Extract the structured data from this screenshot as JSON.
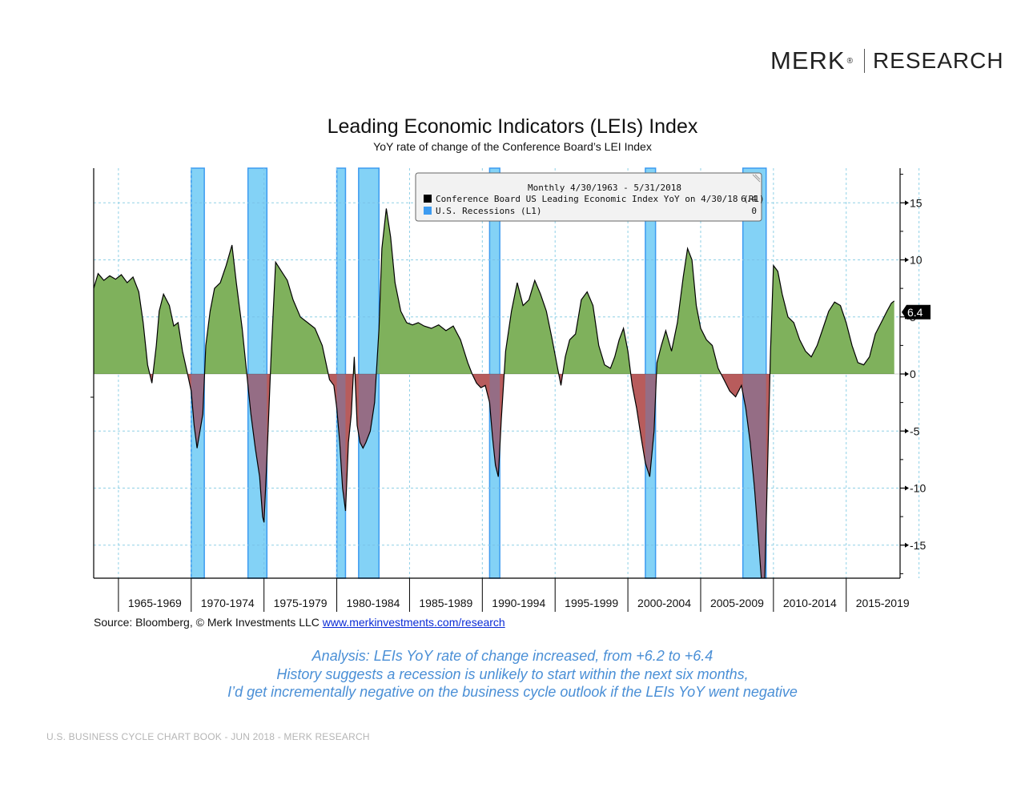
{
  "logo": {
    "brand": "MERK",
    "reg": "®",
    "sub": "RESEARCH"
  },
  "title": "Leading Economic Indicators (LEIs) Index",
  "subtitle": "YoY rate of change of the Conference Board’s LEI Index",
  "legend": {
    "header": "Monthly 4/30/1963 - 5/31/2018",
    "items": [
      {
        "label": "Conference Board US Leading Economic Index YoY on 4/30/18 (R1)",
        "value": "6.4",
        "color": "#000000"
      },
      {
        "label": "U.S. Recessions (L1)",
        "value": "0",
        "color": "#3d9bf0"
      }
    ]
  },
  "last_value_label": "6.4",
  "source": {
    "prefix": "Source: Bloomberg, © Merk Investments LLC ",
    "link": "www.merkinvestments.com/research"
  },
  "analysis": [
    "Analysis: LEIs YoY rate of change increased, from +6.2 to +6.4",
    "History suggests a recession is unlikely to start within the next six months,",
    "I’d get incrementally negative on the business cycle outlook if the LEIs YoY went negative"
  ],
  "footer": "U.S. BUSINESS CYCLE CHART BOOK - JUN 2018 - MERK RESEARCH",
  "colors": {
    "positive_fill": "#7fb15c",
    "negative_fill": "#b85c5c",
    "recession_fill": "#9ee8f8",
    "recession_border": "#3d9bf0",
    "gridline": "#8fd0e6",
    "line": "#000000"
  },
  "chart_data": {
    "type": "area",
    "x_unit": "year",
    "ylim": [
      -18,
      18
    ],
    "xlim": [
      1963.3,
      2018.7
    ],
    "yticks": [
      -15,
      -10,
      -5,
      0,
      5,
      10,
      15
    ],
    "ytick_labels": [
      "-15",
      "-10",
      "-5",
      "0",
      "5",
      "10",
      "15"
    ],
    "xtick_labels": [
      "1965-1969",
      "1970-1974",
      "1975-1979",
      "1980-1984",
      "1985-1989",
      "1990-1994",
      "1995-1999",
      "2000-2004",
      "2005-2009",
      "2010-2014",
      "2015-2019"
    ],
    "axis_side": "right",
    "grid": true,
    "legend_position": "top-center",
    "recessions": [
      [
        1970.0,
        1970.9
      ],
      [
        1973.9,
        1975.2
      ],
      [
        1980.0,
        1980.6
      ],
      [
        1981.5,
        1982.9
      ],
      [
        1990.5,
        1991.2
      ],
      [
        2001.2,
        2001.9
      ],
      [
        2007.9,
        2009.5
      ]
    ],
    "series": [
      {
        "name": "Conference Board US Leading Economic Index YoY",
        "last_value": 6.4,
        "x": [
          1963.3,
          1963.6,
          1964.0,
          1964.4,
          1964.8,
          1965.2,
          1965.6,
          1966.0,
          1966.4,
          1966.7,
          1967.0,
          1967.3,
          1967.6,
          1967.8,
          1968.1,
          1968.5,
          1968.8,
          1969.1,
          1969.4,
          1969.7,
          1970.0,
          1970.2,
          1970.4,
          1970.6,
          1970.8,
          1971.0,
          1971.3,
          1971.6,
          1972.0,
          1972.4,
          1972.8,
          1973.1,
          1973.5,
          1973.8,
          1974.1,
          1974.4,
          1974.7,
          1974.9,
          1975.0,
          1975.2,
          1975.5,
          1975.8,
          1976.2,
          1976.6,
          1977.0,
          1977.5,
          1978.0,
          1978.5,
          1979.0,
          1979.5,
          1979.8,
          1980.0,
          1980.2,
          1980.4,
          1980.6,
          1980.8,
          1981.0,
          1981.2,
          1981.4,
          1981.6,
          1981.8,
          1982.0,
          1982.3,
          1982.6,
          1982.9,
          1983.1,
          1983.4,
          1983.7,
          1984.0,
          1984.4,
          1984.8,
          1985.2,
          1985.6,
          1986.0,
          1986.5,
          1987.0,
          1987.5,
          1988.0,
          1988.5,
          1989.0,
          1989.3,
          1989.6,
          1989.9,
          1990.2,
          1990.5,
          1990.7,
          1990.9,
          1991.1,
          1991.3,
          1991.6,
          1992.0,
          1992.4,
          1992.8,
          1993.2,
          1993.6,
          1994.0,
          1994.4,
          1994.8,
          1995.1,
          1995.4,
          1995.7,
          1996.0,
          1996.4,
          1996.8,
          1997.2,
          1997.6,
          1998.0,
          1998.4,
          1998.8,
          1999.1,
          1999.4,
          1999.7,
          2000.0,
          2000.3,
          2000.6,
          2000.9,
          2001.2,
          2001.5,
          2001.8,
          2002.0,
          2002.3,
          2002.6,
          2003.0,
          2003.4,
          2003.8,
          2004.1,
          2004.4,
          2004.7,
          2005.0,
          2005.4,
          2005.8,
          2006.2,
          2006.6,
          2007.0,
          2007.4,
          2007.8,
          2008.1,
          2008.4,
          2008.7,
          2009.0,
          2009.2,
          2009.4,
          2009.6,
          2009.8,
          2010.0,
          2010.3,
          2010.6,
          2011.0,
          2011.4,
          2011.8,
          2012.2,
          2012.6,
          2013.0,
          2013.4,
          2013.8,
          2014.2,
          2014.6,
          2015.0,
          2015.4,
          2015.8,
          2016.2,
          2016.6,
          2017.0,
          2017.4,
          2017.8,
          2018.1,
          2018.3
        ],
        "y": [
          7.5,
          8.8,
          8.2,
          8.6,
          8.3,
          8.7,
          8.0,
          8.5,
          7.2,
          4.5,
          0.8,
          -0.8,
          2.5,
          5.5,
          7.0,
          6.0,
          4.2,
          4.5,
          2.0,
          0.3,
          -1.5,
          -4.5,
          -6.5,
          -5.0,
          -3.5,
          2.5,
          5.5,
          7.5,
          8.0,
          9.5,
          11.3,
          8.0,
          4.0,
          0.2,
          -3.5,
          -6.5,
          -9.0,
          -12.5,
          -13.0,
          -7.5,
          2.0,
          9.8,
          9.0,
          8.2,
          6.5,
          5.0,
          4.5,
          4.0,
          2.5,
          -0.5,
          -1.0,
          -3.0,
          -6.0,
          -10.0,
          -12.0,
          -6.0,
          -3.5,
          1.5,
          -4.5,
          -6.0,
          -6.5,
          -6.0,
          -5.0,
          -2.5,
          4.0,
          11.0,
          14.5,
          12.0,
          8.0,
          5.5,
          4.5,
          4.3,
          4.5,
          4.2,
          4.0,
          4.3,
          3.8,
          4.2,
          3.0,
          1.0,
          0.0,
          -0.8,
          -1.2,
          -1.0,
          -2.5,
          -5.5,
          -8.0,
          -9.0,
          -4.0,
          2.0,
          5.5,
          8.0,
          6.0,
          6.5,
          8.2,
          7.0,
          5.5,
          3.0,
          1.0,
          -1.0,
          1.5,
          3.0,
          3.5,
          6.5,
          7.2,
          6.0,
          2.5,
          0.8,
          0.5,
          1.5,
          3.0,
          4.0,
          2.0,
          -1.0,
          -3.0,
          -5.5,
          -7.8,
          -9.0,
          -5.0,
          1.0,
          2.5,
          3.8,
          2.0,
          4.5,
          8.5,
          11.0,
          10.0,
          6.0,
          4.0,
          3.0,
          2.5,
          0.5,
          -0.5,
          -1.5,
          -2.0,
          -1.0,
          -3.0,
          -6.0,
          -10.0,
          -15.0,
          -18.5,
          -18.0,
          -8.0,
          2.0,
          9.5,
          9.0,
          7.0,
          5.0,
          4.5,
          3.0,
          2.0,
          1.5,
          2.5,
          4.0,
          5.5,
          6.3,
          6.0,
          4.5,
          2.5,
          1.0,
          0.8,
          1.5,
          3.5,
          4.5,
          5.5,
          6.2,
          6.4
        ]
      }
    ]
  }
}
